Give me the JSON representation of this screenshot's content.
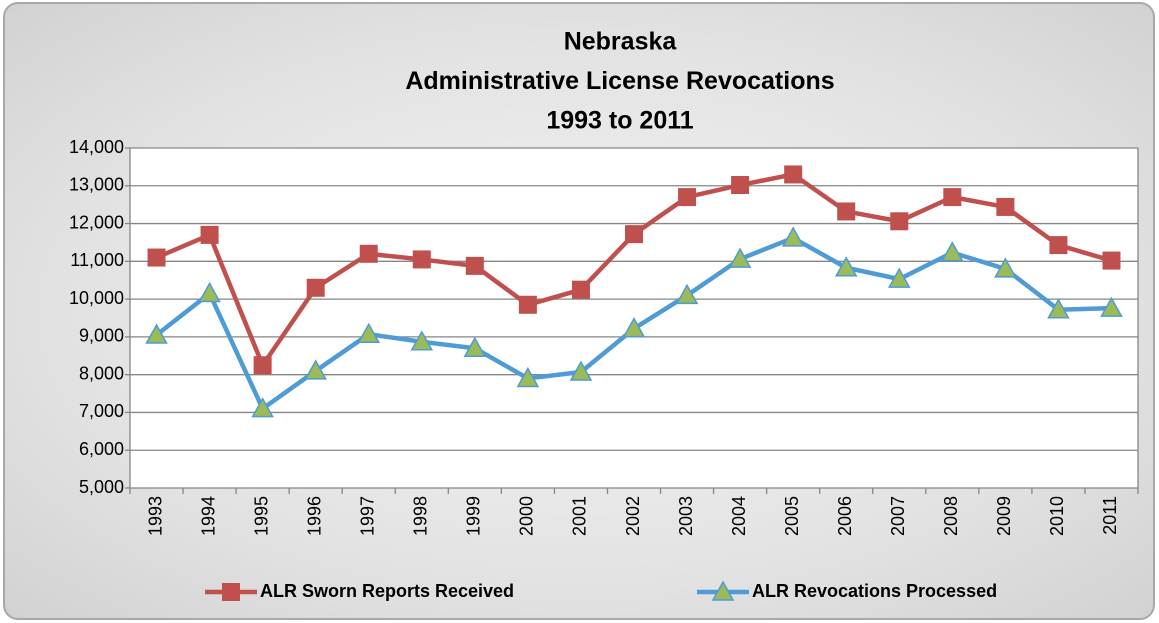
{
  "chart_data": {
    "type": "line",
    "title": [
      "Nebraska",
      "Administrative License Revocations",
      "1993 to 2011"
    ],
    "categories": [
      "1993",
      "1994",
      "1995",
      "1996",
      "1997",
      "1998",
      "1999",
      "2000",
      "2001",
      "2002",
      "2003",
      "2004",
      "2005",
      "2006",
      "2007",
      "2008",
      "2009",
      "2010",
      "2011"
    ],
    "series": [
      {
        "name": "ALR Sworn Reports Received",
        "color": "#c0504d",
        "marker": "square",
        "values": [
          11100,
          11700,
          8250,
          10300,
          11200,
          11050,
          10880,
          9850,
          10250,
          11720,
          12700,
          13020,
          13300,
          12320,
          12060,
          12700,
          12440,
          11430,
          11020
        ]
      },
      {
        "name": "ALR Revocations Processed",
        "color": "#4f9bd5",
        "marker": "triangle",
        "marker_color": "#9bbb59",
        "values": [
          9050,
          10150,
          7100,
          8100,
          9070,
          8870,
          8700,
          7900,
          8070,
          9220,
          10100,
          11060,
          11620,
          10830,
          10530,
          11230,
          10800,
          9720,
          9760
        ]
      }
    ],
    "ylim": [
      5000,
      14000
    ],
    "yticks": [
      {
        "value": 5000,
        "label": "5,000"
      },
      {
        "value": 6000,
        "label": "6,000"
      },
      {
        "value": 7000,
        "label": "7,000"
      },
      {
        "value": 8000,
        "label": "8,000"
      },
      {
        "value": 9000,
        "label": "9,000"
      },
      {
        "value": 10000,
        "label": "10,000"
      },
      {
        "value": 11000,
        "label": "11,000"
      },
      {
        "value": 12000,
        "label": "12,000"
      },
      {
        "value": 13000,
        "label": "13,000"
      },
      {
        "value": 14000,
        "label": "14,000"
      }
    ],
    "grid": true,
    "legend": "bottom"
  }
}
